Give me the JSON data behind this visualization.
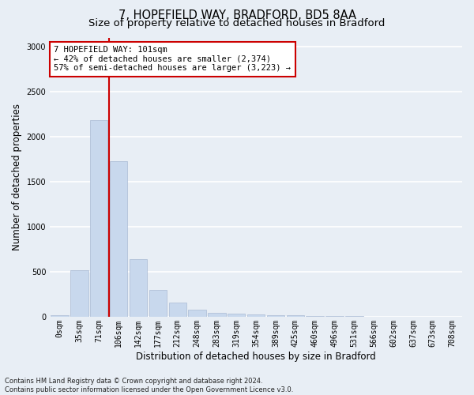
{
  "title_line1": "7, HOPEFIELD WAY, BRADFORD, BD5 8AA",
  "title_line2": "Size of property relative to detached houses in Bradford",
  "xlabel": "Distribution of detached houses by size in Bradford",
  "ylabel": "Number of detached properties",
  "bar_labels": [
    "0sqm",
    "35sqm",
    "71sqm",
    "106sqm",
    "142sqm",
    "177sqm",
    "212sqm",
    "248sqm",
    "283sqm",
    "319sqm",
    "354sqm",
    "389sqm",
    "425sqm",
    "460sqm",
    "496sqm",
    "531sqm",
    "566sqm",
    "602sqm",
    "637sqm",
    "673sqm",
    "708sqm"
  ],
  "bar_values": [
    20,
    520,
    2180,
    1730,
    640,
    300,
    155,
    80,
    45,
    30,
    25,
    20,
    15,
    10,
    5,
    5,
    3,
    2,
    1,
    1,
    1
  ],
  "bar_color": "#c8d8ed",
  "bar_edge_color": "#aabbd4",
  "vline_color": "#cc0000",
  "annotation_text": "7 HOPEFIELD WAY: 101sqm\n← 42% of detached houses are smaller (2,374)\n57% of semi-detached houses are larger (3,223) →",
  "annotation_box_color": "#ffffff",
  "annotation_box_edge": "#cc0000",
  "ylim": [
    0,
    3100
  ],
  "yticks": [
    0,
    500,
    1000,
    1500,
    2000,
    2500,
    3000
  ],
  "footer_text": "Contains HM Land Registry data © Crown copyright and database right 2024.\nContains public sector information licensed under the Open Government Licence v3.0.",
  "bg_color": "#e8eef5",
  "grid_color": "#ffffff",
  "title_fontsize": 10.5,
  "subtitle_fontsize": 9.5,
  "axis_label_fontsize": 8.5,
  "tick_fontsize": 7,
  "annotation_fontsize": 7.5,
  "footer_fontsize": 6
}
